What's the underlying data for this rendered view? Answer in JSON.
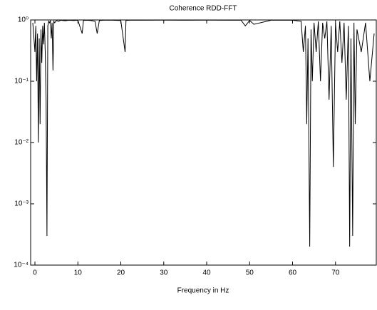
{
  "chart_data": {
    "type": "line",
    "title": "Coherence RDD-FFT",
    "x_label": "Frequency in Hz",
    "log_y": true,
    "grid": false,
    "xlim": [
      -1,
      79.5
    ],
    "ylim": [
      0.0001,
      1
    ],
    "xticks": [
      0,
      10,
      20,
      30,
      40,
      50,
      60,
      70
    ],
    "yticks": [
      {
        "value": 0.0001,
        "label": "10⁻⁴"
      },
      {
        "value": 0.001,
        "label": "10⁻³"
      },
      {
        "value": 0.01,
        "label": "10⁻²"
      },
      {
        "value": 0.1,
        "label": "10⁻¹"
      },
      {
        "value": 1,
        "label": "10⁰"
      }
    ],
    "series": [
      {
        "color": "#000000",
        "x": [
          -0.5,
          0,
          0.2,
          0.4,
          0.6,
          0.8,
          1.0,
          1.2,
          1.4,
          1.6,
          1.8,
          2.0,
          2.2,
          2.4,
          2.6,
          2.8,
          3.0,
          3.2,
          3.4,
          3.6,
          3.8,
          4.0,
          4.2,
          4.4,
          4.6,
          5,
          5.5,
          6,
          7,
          8,
          9,
          10,
          11,
          11.3,
          12,
          13,
          14,
          14.5,
          15,
          16,
          18,
          20,
          21,
          21.2,
          22,
          25,
          30,
          35,
          40,
          45,
          48,
          49,
          50,
          51,
          55,
          60,
          62,
          62.5,
          63,
          63.3,
          63.6,
          64,
          64.3,
          64.6,
          65,
          65.5,
          66,
          66.5,
          67,
          67.5,
          68,
          68.5,
          69,
          69.5,
          70,
          70.5,
          71,
          71.5,
          72,
          72.5,
          73,
          73.3,
          73.6,
          74,
          74.3,
          74.6,
          75,
          76,
          77,
          78,
          79
        ],
        "values": [
          0.9,
          0.3,
          0.8,
          0.1,
          0.6,
          0.01,
          0.5,
          0.02,
          0.7,
          0.2,
          0.8,
          0.4,
          0.9,
          0.3,
          0.05,
          0.0003,
          0.8,
          0.95,
          0.9,
          0.98,
          0.5,
          0.9,
          0.15,
          0.95,
          0.9,
          0.98,
          0.95,
          0.99,
          0.97,
          0.99,
          0.98,
          0.99,
          0.6,
          0.98,
          0.99,
          0.98,
          0.95,
          0.6,
          0.98,
          0.99,
          0.99,
          0.98,
          0.3,
          0.98,
          0.99,
          0.99,
          0.995,
          0.99,
          0.995,
          0.99,
          0.99,
          0.8,
          0.98,
          0.85,
          0.99,
          0.99,
          0.95,
          0.3,
          0.8,
          0.02,
          0.5,
          0.0002,
          0.7,
          0.1,
          0.9,
          0.3,
          0.95,
          0.1,
          0.9,
          0.5,
          0.95,
          0.05,
          0.8,
          0.004,
          0.9,
          0.3,
          0.95,
          0.2,
          0.9,
          0.05,
          0.8,
          0.0002,
          0.5,
          0.0003,
          0.9,
          0.02,
          0.7,
          0.3,
          0.9,
          0.1,
          0.6
        ]
      }
    ]
  }
}
